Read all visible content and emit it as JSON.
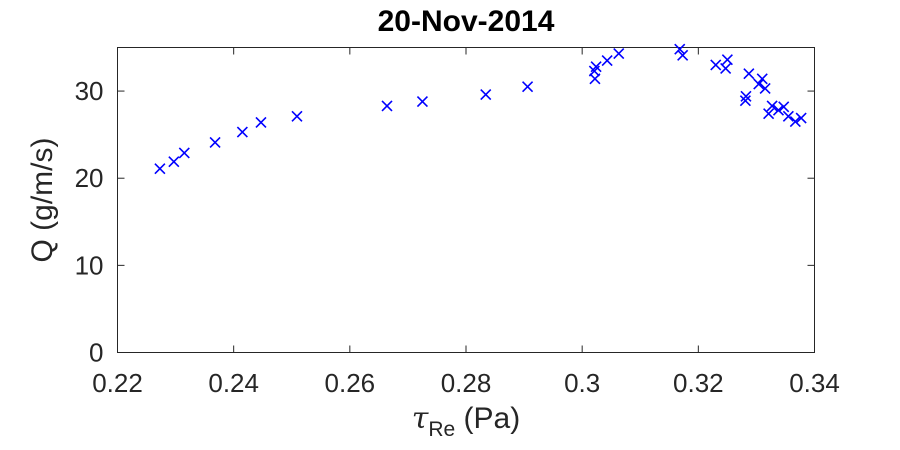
{
  "chart_data": {
    "type": "scatter",
    "title": "20-Nov-2014",
    "xlabel_symbol": "τ",
    "xlabel_subscript": "Re",
    "xlabel_unit": " (Pa)",
    "ylabel": "Q (g/m/s)",
    "xlim": [
      0.22,
      0.34
    ],
    "ylim": [
      0,
      35
    ],
    "xticks": [
      0.22,
      0.24,
      0.26,
      0.28,
      0.3,
      0.32,
      0.34
    ],
    "xtick_labels": [
      "0.22",
      "0.24",
      "0.26",
      "0.28",
      "0.3",
      "0.32",
      "0.34"
    ],
    "yticks": [
      0,
      10,
      20,
      30
    ],
    "ytick_labels": [
      "0",
      "10",
      "20",
      "30"
    ],
    "marker": "x",
    "grid": false,
    "series_color": "#0000ff",
    "points": [
      [
        0.2273,
        21.1
      ],
      [
        0.2297,
        21.9
      ],
      [
        0.2315,
        22.9
      ],
      [
        0.2368,
        24.1
      ],
      [
        0.2415,
        25.3
      ],
      [
        0.2447,
        26.4
      ],
      [
        0.2509,
        27.1
      ],
      [
        0.2664,
        28.3
      ],
      [
        0.2725,
        28.8
      ],
      [
        0.2834,
        29.6
      ],
      [
        0.2906,
        30.5
      ],
      [
        0.3022,
        31.4
      ],
      [
        0.3021,
        32.3
      ],
      [
        0.3024,
        32.8
      ],
      [
        0.3043,
        33.5
      ],
      [
        0.3063,
        34.3
      ],
      [
        0.3168,
        34.8
      ],
      [
        0.3173,
        34.1
      ],
      [
        0.323,
        33.0
      ],
      [
        0.3247,
        32.6
      ],
      [
        0.325,
        33.6
      ],
      [
        0.3281,
        28.9
      ],
      [
        0.3282,
        29.4
      ],
      [
        0.3287,
        32.0
      ],
      [
        0.3304,
        30.8
      ],
      [
        0.331,
        31.4
      ],
      [
        0.3315,
        30.3
      ],
      [
        0.3321,
        27.4
      ],
      [
        0.3327,
        28.3
      ],
      [
        0.3338,
        27.8
      ],
      [
        0.3347,
        28.2
      ],
      [
        0.3355,
        27.1
      ],
      [
        0.3367,
        26.5
      ],
      [
        0.3377,
        26.9
      ]
    ]
  }
}
